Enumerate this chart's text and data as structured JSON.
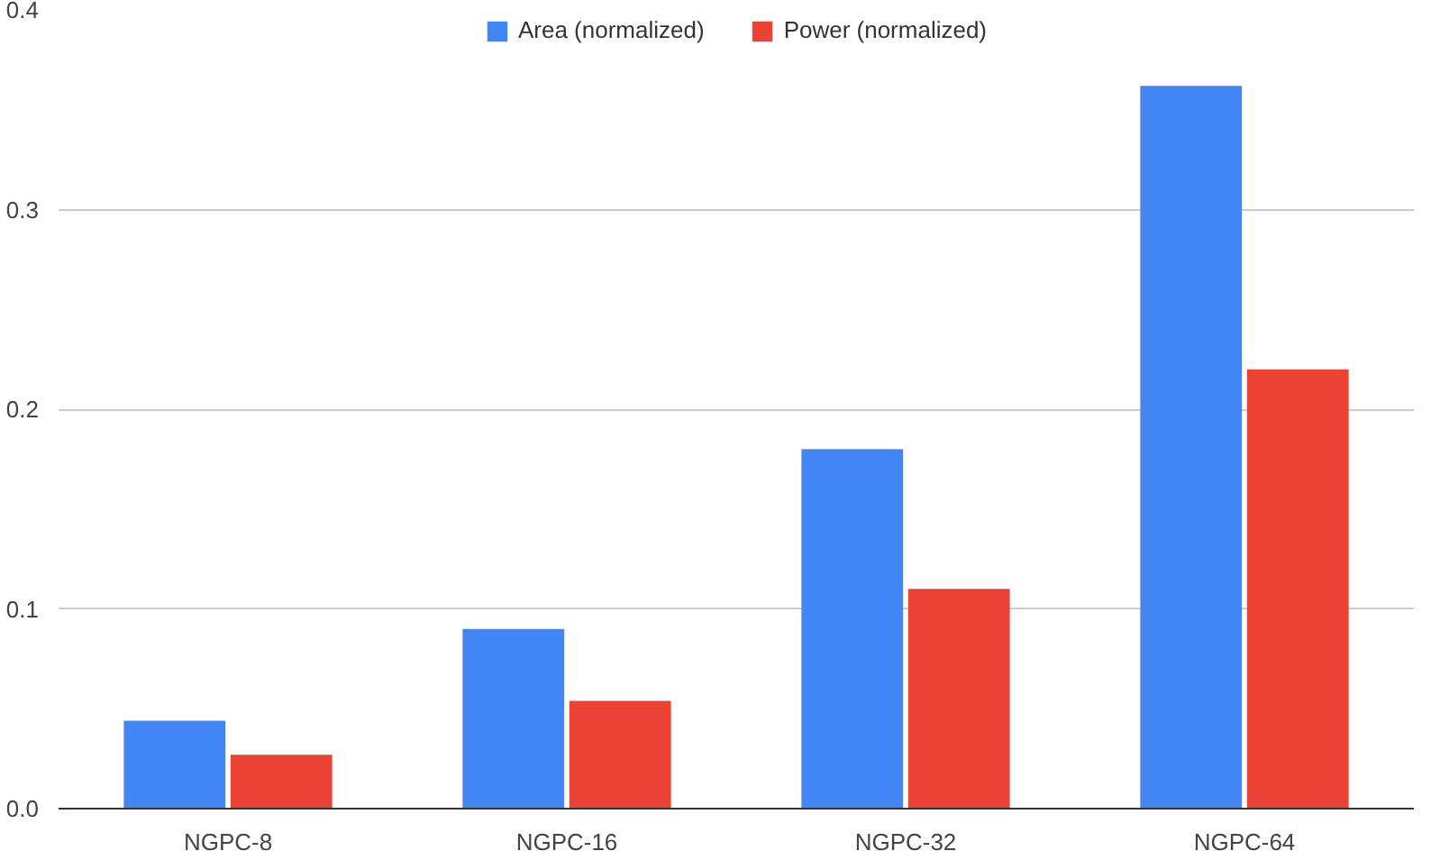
{
  "chart_data": {
    "type": "bar",
    "categories": [
      "NGPC-8",
      "NGPC-16",
      "NGPC-32",
      "NGPC-64"
    ],
    "series": [
      {
        "name": "Area (normalized)",
        "color": "#4285f4",
        "values": [
          0.044,
          0.09,
          0.18,
          0.362
        ]
      },
      {
        "name": "Power (normalized)",
        "color": "#ea4335",
        "values": [
          0.027,
          0.054,
          0.11,
          0.22
        ]
      }
    ],
    "ylim": [
      0,
      0.4
    ],
    "yticks": [
      {
        "value": 0,
        "label": "0.0"
      },
      0.1,
      0.2,
      0.3,
      0.4
    ],
    "grid": "y",
    "legend": "top"
  }
}
